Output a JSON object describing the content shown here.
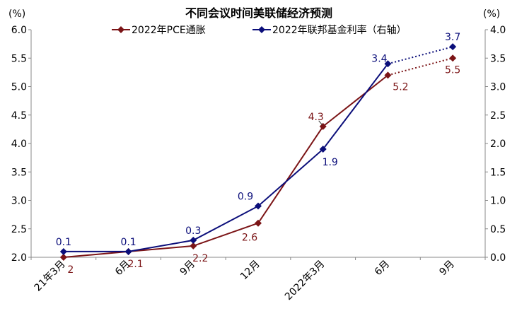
{
  "chart_data": {
    "type": "line",
    "title": "不同会议时间美联储经济预测",
    "y_left": {
      "unit": "(%)",
      "lim": [
        2.0,
        6.0
      ],
      "ticks": [
        "2.0",
        "2.5",
        "3.0",
        "3.5",
        "4.0",
        "4.5",
        "5.0",
        "5.5",
        "6.0"
      ]
    },
    "y_right": {
      "unit": "(%)",
      "lim": [
        0.0,
        4.0
      ],
      "ticks": [
        "0.0",
        "0.5",
        "1.0",
        "1.5",
        "2.0",
        "2.5",
        "3.0",
        "3.5",
        "4.0"
      ]
    },
    "categories": [
      "21年3月",
      "6月",
      "9月",
      "12月",
      "2022年3月",
      "6月",
      "9月"
    ],
    "series": [
      {
        "name": "2022年PCE通胀",
        "axis": "left",
        "color": "#7B1416",
        "values": [
          2.0,
          2.1,
          2.2,
          2.6,
          4.3,
          5.2,
          5.5
        ],
        "labels": [
          "2",
          "2.1",
          "2.2",
          "2.6",
          "4.3",
          "5.2",
          "5.5"
        ],
        "dotted_last_segment": true
      },
      {
        "name": "2022年联邦基金利率（右轴）",
        "axis": "right",
        "color": "#0B0E7A",
        "values": [
          0.1,
          0.1,
          0.3,
          0.9,
          1.9,
          3.4,
          3.7
        ],
        "labels": [
          "0.1",
          "0.1",
          "0.3",
          "0.9",
          "1.9",
          "3.4",
          "3.7"
        ],
        "dotted_last_segment": true
      }
    ],
    "legend_position": "top-center",
    "grid": false
  }
}
